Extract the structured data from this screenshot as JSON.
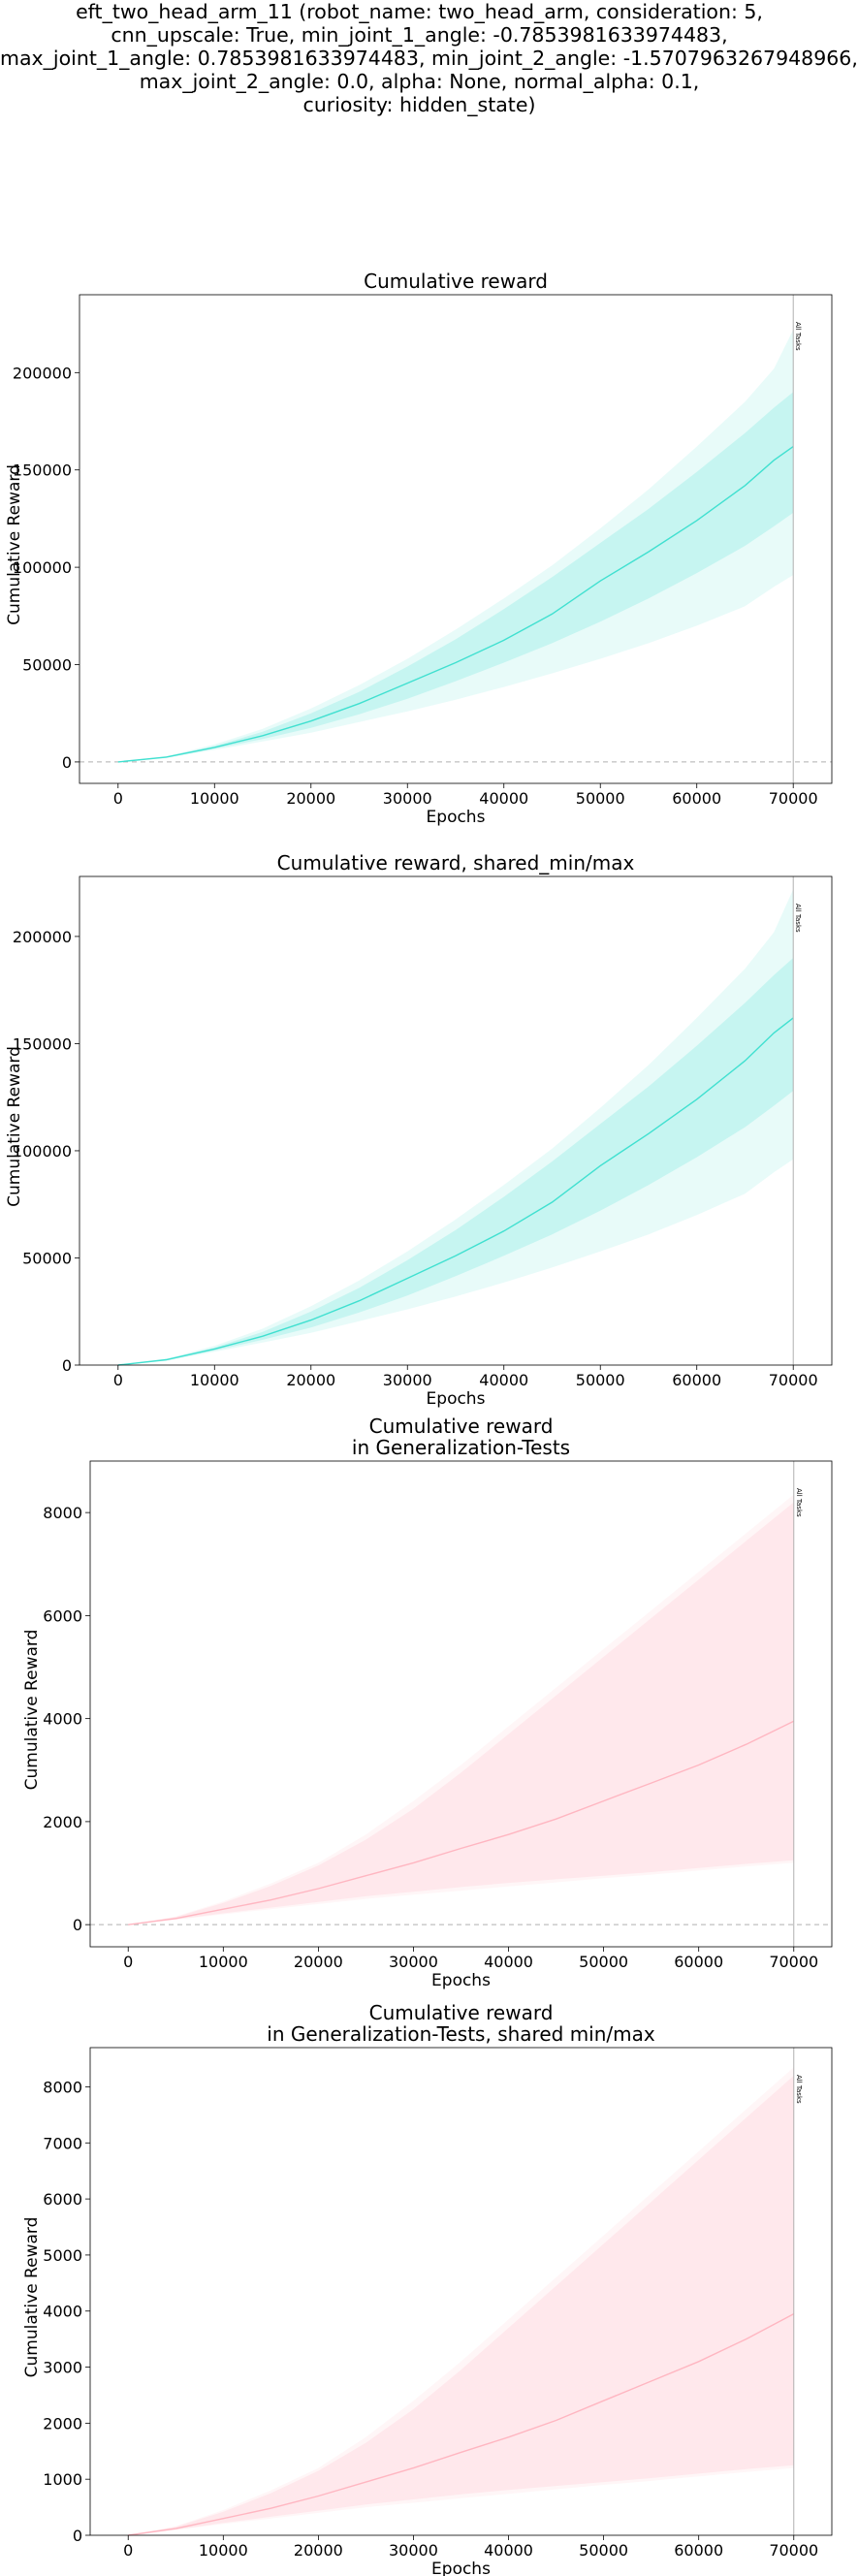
{
  "suptitle_lines": [
    "eft_two_head_arm_11 (robot_name: two_head_arm, consideration: 5,",
    "cnn_upscale: True, min_joint_1_angle: -0.7853981633974483,",
    "max_joint_1_angle: 0.7853981633974483, min_joint_2_angle: -1.5707963267948966,",
    "max_joint_2_angle: 0.0, alpha: None, normal_alpha: 0.1,",
    "curiosity: hidden_state)"
  ],
  "colors": {
    "train": "#40e0d0",
    "test": "#ffb6c1",
    "zero_line": "#b0b0b0",
    "vline": "#b0b0b0"
  },
  "chart_data": [
    {
      "type": "area",
      "title_lines": [
        "Cumulative reward"
      ],
      "xlabel": "Epochs",
      "ylabel": "Cumulative Reward",
      "xlim": [
        -4000,
        74000
      ],
      "ylim": [
        -11000,
        240000
      ],
      "xticks": [
        0,
        10000,
        20000,
        30000,
        40000,
        50000,
        60000,
        70000
      ],
      "yticks": [
        0,
        50000,
        100000,
        150000,
        200000
      ],
      "zero_line": true,
      "vline": {
        "x": 70000,
        "label": "All Tasks"
      },
      "series": [
        {
          "color": "#40e0d0",
          "x": [
            0,
            5000,
            10000,
            15000,
            20000,
            25000,
            30000,
            35000,
            40000,
            45000,
            50000,
            55000,
            60000,
            65000,
            68000,
            70000
          ],
          "mean": [
            0,
            2500,
            7500,
            13500,
            21000,
            30000,
            40500,
            51000,
            62500,
            76000,
            93000,
            108000,
            124000,
            142000,
            155000,
            162000
          ],
          "std_lower": [
            0,
            2200,
            6800,
            11800,
            17500,
            24500,
            32500,
            41500,
            51000,
            61000,
            72000,
            84000,
            97000,
            111000,
            121000,
            128000
          ],
          "std_upper": [
            0,
            2800,
            8200,
            15500,
            25000,
            36000,
            49000,
            63000,
            78500,
            95000,
            112500,
            130000,
            149000,
            169000,
            182000,
            190000
          ],
          "min": [
            0,
            2000,
            6200,
            10500,
            15000,
            20500,
            26000,
            32000,
            38500,
            45500,
            53000,
            61000,
            70000,
            80000,
            90000,
            96000
          ],
          "max": [
            0,
            3000,
            9000,
            17000,
            27500,
            39500,
            53000,
            68000,
            84000,
            101000,
            120000,
            140000,
            162000,
            185000,
            202000,
            222000
          ]
        }
      ]
    },
    {
      "type": "area",
      "title_lines": [
        "Cumulative reward, shared_min/max"
      ],
      "xlabel": "Epochs",
      "ylabel": "Cumulative Reward",
      "xlim": [
        -4000,
        74000
      ],
      "ylim": [
        0,
        228000
      ],
      "xticks": [
        0,
        10000,
        20000,
        30000,
        40000,
        50000,
        60000,
        70000
      ],
      "yticks": [
        0,
        50000,
        100000,
        150000,
        200000
      ],
      "zero_line": false,
      "vline": {
        "x": 70000,
        "label": "All Tasks"
      },
      "series": [
        {
          "color": "#40e0d0",
          "x": [
            0,
            5000,
            10000,
            15000,
            20000,
            25000,
            30000,
            35000,
            40000,
            45000,
            50000,
            55000,
            60000,
            65000,
            68000,
            70000
          ],
          "mean": [
            0,
            2500,
            7500,
            13500,
            21000,
            30000,
            40500,
            51000,
            62500,
            76000,
            93000,
            108000,
            124000,
            142000,
            155000,
            162000
          ],
          "std_lower": [
            0,
            2200,
            6800,
            11800,
            17500,
            24500,
            32500,
            41500,
            51000,
            61000,
            72000,
            84000,
            97000,
            111000,
            121000,
            128000
          ],
          "std_upper": [
            0,
            2800,
            8200,
            15500,
            25000,
            36000,
            49000,
            63000,
            78500,
            95000,
            112500,
            130000,
            149000,
            169000,
            182000,
            190000
          ],
          "min": [
            0,
            2000,
            6200,
            10500,
            15000,
            20500,
            26000,
            32000,
            38500,
            45500,
            53000,
            61000,
            70000,
            80000,
            90000,
            96000
          ],
          "max": [
            0,
            3000,
            9000,
            17000,
            27500,
            39500,
            53000,
            68000,
            84000,
            101000,
            120000,
            140000,
            162000,
            185000,
            202000,
            222000
          ]
        }
      ]
    },
    {
      "type": "area",
      "title_lines": [
        "Cumulative reward",
        "in Generalization-Tests"
      ],
      "xlabel": "Epochs",
      "ylabel": "Cumulative Reward",
      "xlim": [
        -4000,
        74000
      ],
      "ylim": [
        -430,
        9000
      ],
      "xticks": [
        0,
        10000,
        20000,
        30000,
        40000,
        50000,
        60000,
        70000
      ],
      "yticks": [
        0,
        2000,
        4000,
        6000,
        8000
      ],
      "zero_line": true,
      "vline": {
        "x": 70000,
        "label": "All Tasks"
      },
      "series": [
        {
          "color": "#ffb6c1",
          "x": [
            0,
            5000,
            10000,
            15000,
            20000,
            25000,
            30000,
            35000,
            40000,
            45000,
            50000,
            55000,
            60000,
            65000,
            70000
          ],
          "mean": [
            0,
            120,
            300,
            480,
            700,
            950,
            1200,
            1480,
            1750,
            2050,
            2400,
            2750,
            3100,
            3500,
            3950
          ],
          "std_lower": [
            0,
            100,
            220,
            330,
            440,
            550,
            640,
            730,
            810,
            880,
            950,
            1020,
            1100,
            1180,
            1250
          ],
          "std_upper": [
            0,
            150,
            420,
            750,
            1150,
            1650,
            2250,
            2950,
            3700,
            4450,
            5200,
            5950,
            6700,
            7450,
            8200
          ],
          "min": [
            0,
            95,
            200,
            300,
            400,
            500,
            580,
            660,
            740,
            820,
            900,
            970,
            1050,
            1130,
            1200
          ],
          "max": [
            0,
            160,
            450,
            800,
            1200,
            1750,
            2400,
            3100,
            3850,
            4600,
            5350,
            6100,
            6850,
            7600,
            8350
          ]
        }
      ]
    },
    {
      "type": "area",
      "title_lines": [
        "Cumulative reward",
        "in Generalization-Tests, shared min/max"
      ],
      "xlabel": "Epochs",
      "ylabel": "Cumulative Reward",
      "xlim": [
        -4000,
        74000
      ],
      "ylim": [
        0,
        8700
      ],
      "xticks": [
        0,
        10000,
        20000,
        30000,
        40000,
        50000,
        60000,
        70000
      ],
      "yticks": [
        0,
        1000,
        2000,
        3000,
        4000,
        5000,
        6000,
        7000,
        8000
      ],
      "zero_line": false,
      "vline": {
        "x": 70000,
        "label": "All Tasks"
      },
      "series": [
        {
          "color": "#ffb6c1",
          "x": [
            0,
            5000,
            10000,
            15000,
            20000,
            25000,
            30000,
            35000,
            40000,
            45000,
            50000,
            55000,
            60000,
            65000,
            70000
          ],
          "mean": [
            0,
            120,
            300,
            480,
            700,
            950,
            1200,
            1480,
            1750,
            2050,
            2400,
            2750,
            3100,
            3500,
            3950
          ],
          "std_lower": [
            0,
            100,
            220,
            330,
            440,
            550,
            640,
            730,
            810,
            880,
            950,
            1020,
            1100,
            1180,
            1250
          ],
          "std_upper": [
            0,
            150,
            420,
            750,
            1150,
            1650,
            2250,
            2950,
            3700,
            4450,
            5200,
            5950,
            6700,
            7450,
            8200
          ],
          "min": [
            0,
            95,
            200,
            300,
            400,
            500,
            580,
            660,
            740,
            820,
            900,
            970,
            1050,
            1130,
            1200
          ],
          "max": [
            0,
            160,
            450,
            800,
            1200,
            1750,
            2400,
            3100,
            3850,
            4600,
            5350,
            6100,
            6850,
            7600,
            8350
          ]
        }
      ]
    }
  ]
}
